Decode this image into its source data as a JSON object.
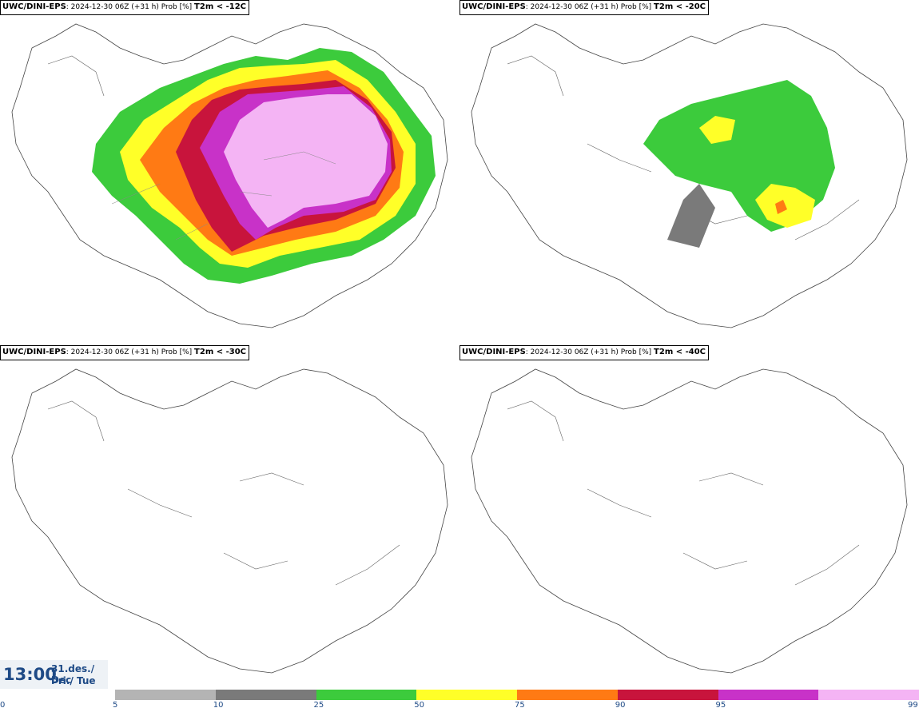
{
  "panels": [
    {
      "model": "UWC/DINI-EPS",
      "meta": ": 2024-12-30 06Z (+31 h) Prob [%]",
      "variable": "T2m < -12C"
    },
    {
      "model": "UWC/DINI-EPS",
      "meta": ": 2024-12-30 06Z (+31 h) Prob [%]",
      "variable": "T2m < -20C"
    },
    {
      "model": "UWC/DINI-EPS",
      "meta": ": 2024-12-30 06Z (+31 h) Prob [%]",
      "variable": "T2m < -30C"
    },
    {
      "model": "UWC/DINI-EPS",
      "meta": ": 2024-12-30 06Z (+31 h) Prob [%]",
      "variable": "T2m < -40C"
    }
  ],
  "valid_time": {
    "time": "13:00",
    "date_line": "31.des./ Dec",
    "day_line": "Þri./ Tue"
  },
  "colorbar": {
    "ticks": [
      "0",
      "5",
      "10",
      "25",
      "50",
      "75",
      "90",
      "95",
      "99"
    ],
    "colors": [
      "#b4b4b4",
      "#7a7a7a",
      "#3ccb3c",
      "#ffff28",
      "#ff7a14",
      "#c8143c",
      "#c832c8",
      "#f4b4f4"
    ]
  }
}
